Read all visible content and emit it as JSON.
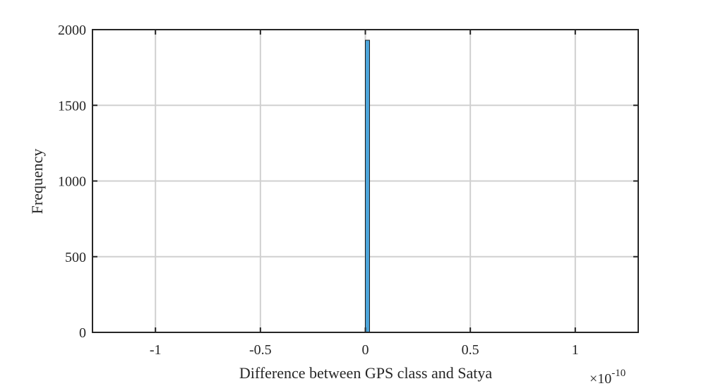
{
  "chart_data": {
    "type": "bar",
    "title": "",
    "xlabel": "Difference between GPS class and Satya",
    "ylabel": "Frequency",
    "x_exponent_label": {
      "base": "×10",
      "exponent": "-10"
    },
    "xlim": [
      -1.3,
      1.3
    ],
    "ylim": [
      0,
      2000
    ],
    "xticks": [
      -1,
      -0.5,
      0,
      0.5,
      1
    ],
    "xtick_labels": [
      "-1",
      "-0.5",
      "0",
      "0.5",
      "1"
    ],
    "yticks": [
      0,
      500,
      1000,
      1500,
      2000
    ],
    "ytick_labels": [
      "0",
      "500",
      "1000",
      "1500",
      "2000"
    ],
    "grid": true,
    "bars": [
      {
        "x_start": 0.0,
        "x_end": 0.02,
        "value": 1930
      }
    ],
    "colors": {
      "bar_fill": "#4DA6DB",
      "bar_edge": "#1a1a1a",
      "axes": "#262626",
      "grid": "#d0d0d0"
    }
  }
}
